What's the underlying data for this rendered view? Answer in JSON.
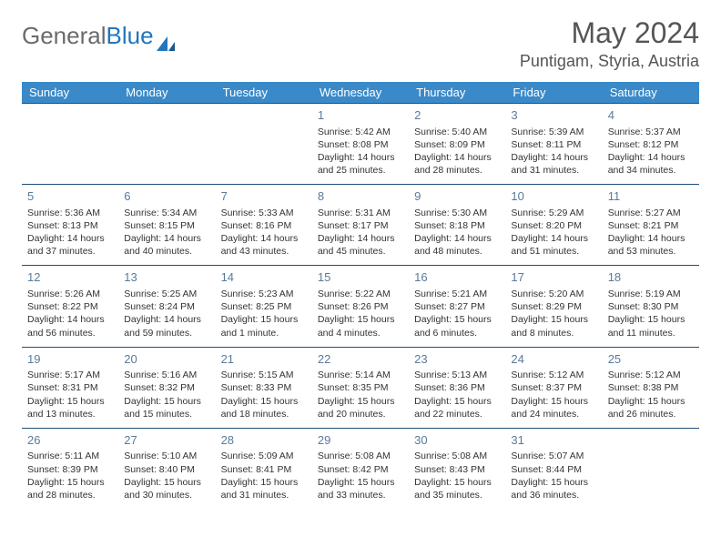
{
  "logo": {
    "text1": "General",
    "text2": "Blue"
  },
  "title": "May 2024",
  "location": "Puntigam, Styria, Austria",
  "colors": {
    "header_bg": "#3a8ac9",
    "header_fg": "#ffffff",
    "border": "#1f4e79",
    "daynum": "#5a7a9a",
    "logo_gray": "#6b6b6b",
    "logo_blue": "#2176bd"
  },
  "weekdays": [
    "Sunday",
    "Monday",
    "Tuesday",
    "Wednesday",
    "Thursday",
    "Friday",
    "Saturday"
  ],
  "weeks": [
    [
      null,
      null,
      null,
      {
        "n": "1",
        "sr": "5:42 AM",
        "ss": "8:08 PM",
        "dl": "14 hours and 25 minutes."
      },
      {
        "n": "2",
        "sr": "5:40 AM",
        "ss": "8:09 PM",
        "dl": "14 hours and 28 minutes."
      },
      {
        "n": "3",
        "sr": "5:39 AM",
        "ss": "8:11 PM",
        "dl": "14 hours and 31 minutes."
      },
      {
        "n": "4",
        "sr": "5:37 AM",
        "ss": "8:12 PM",
        "dl": "14 hours and 34 minutes."
      }
    ],
    [
      {
        "n": "5",
        "sr": "5:36 AM",
        "ss": "8:13 PM",
        "dl": "14 hours and 37 minutes."
      },
      {
        "n": "6",
        "sr": "5:34 AM",
        "ss": "8:15 PM",
        "dl": "14 hours and 40 minutes."
      },
      {
        "n": "7",
        "sr": "5:33 AM",
        "ss": "8:16 PM",
        "dl": "14 hours and 43 minutes."
      },
      {
        "n": "8",
        "sr": "5:31 AM",
        "ss": "8:17 PM",
        "dl": "14 hours and 45 minutes."
      },
      {
        "n": "9",
        "sr": "5:30 AM",
        "ss": "8:18 PM",
        "dl": "14 hours and 48 minutes."
      },
      {
        "n": "10",
        "sr": "5:29 AM",
        "ss": "8:20 PM",
        "dl": "14 hours and 51 minutes."
      },
      {
        "n": "11",
        "sr": "5:27 AM",
        "ss": "8:21 PM",
        "dl": "14 hours and 53 minutes."
      }
    ],
    [
      {
        "n": "12",
        "sr": "5:26 AM",
        "ss": "8:22 PM",
        "dl": "14 hours and 56 minutes."
      },
      {
        "n": "13",
        "sr": "5:25 AM",
        "ss": "8:24 PM",
        "dl": "14 hours and 59 minutes."
      },
      {
        "n": "14",
        "sr": "5:23 AM",
        "ss": "8:25 PM",
        "dl": "15 hours and 1 minute."
      },
      {
        "n": "15",
        "sr": "5:22 AM",
        "ss": "8:26 PM",
        "dl": "15 hours and 4 minutes."
      },
      {
        "n": "16",
        "sr": "5:21 AM",
        "ss": "8:27 PM",
        "dl": "15 hours and 6 minutes."
      },
      {
        "n": "17",
        "sr": "5:20 AM",
        "ss": "8:29 PM",
        "dl": "15 hours and 8 minutes."
      },
      {
        "n": "18",
        "sr": "5:19 AM",
        "ss": "8:30 PM",
        "dl": "15 hours and 11 minutes."
      }
    ],
    [
      {
        "n": "19",
        "sr": "5:17 AM",
        "ss": "8:31 PM",
        "dl": "15 hours and 13 minutes."
      },
      {
        "n": "20",
        "sr": "5:16 AM",
        "ss": "8:32 PM",
        "dl": "15 hours and 15 minutes."
      },
      {
        "n": "21",
        "sr": "5:15 AM",
        "ss": "8:33 PM",
        "dl": "15 hours and 18 minutes."
      },
      {
        "n": "22",
        "sr": "5:14 AM",
        "ss": "8:35 PM",
        "dl": "15 hours and 20 minutes."
      },
      {
        "n": "23",
        "sr": "5:13 AM",
        "ss": "8:36 PM",
        "dl": "15 hours and 22 minutes."
      },
      {
        "n": "24",
        "sr": "5:12 AM",
        "ss": "8:37 PM",
        "dl": "15 hours and 24 minutes."
      },
      {
        "n": "25",
        "sr": "5:12 AM",
        "ss": "8:38 PM",
        "dl": "15 hours and 26 minutes."
      }
    ],
    [
      {
        "n": "26",
        "sr": "5:11 AM",
        "ss": "8:39 PM",
        "dl": "15 hours and 28 minutes."
      },
      {
        "n": "27",
        "sr": "5:10 AM",
        "ss": "8:40 PM",
        "dl": "15 hours and 30 minutes."
      },
      {
        "n": "28",
        "sr": "5:09 AM",
        "ss": "8:41 PM",
        "dl": "15 hours and 31 minutes."
      },
      {
        "n": "29",
        "sr": "5:08 AM",
        "ss": "8:42 PM",
        "dl": "15 hours and 33 minutes."
      },
      {
        "n": "30",
        "sr": "5:08 AM",
        "ss": "8:43 PM",
        "dl": "15 hours and 35 minutes."
      },
      {
        "n": "31",
        "sr": "5:07 AM",
        "ss": "8:44 PM",
        "dl": "15 hours and 36 minutes."
      },
      null
    ]
  ],
  "labels": {
    "sunrise": "Sunrise:",
    "sunset": "Sunset:",
    "daylight": "Daylight:"
  }
}
